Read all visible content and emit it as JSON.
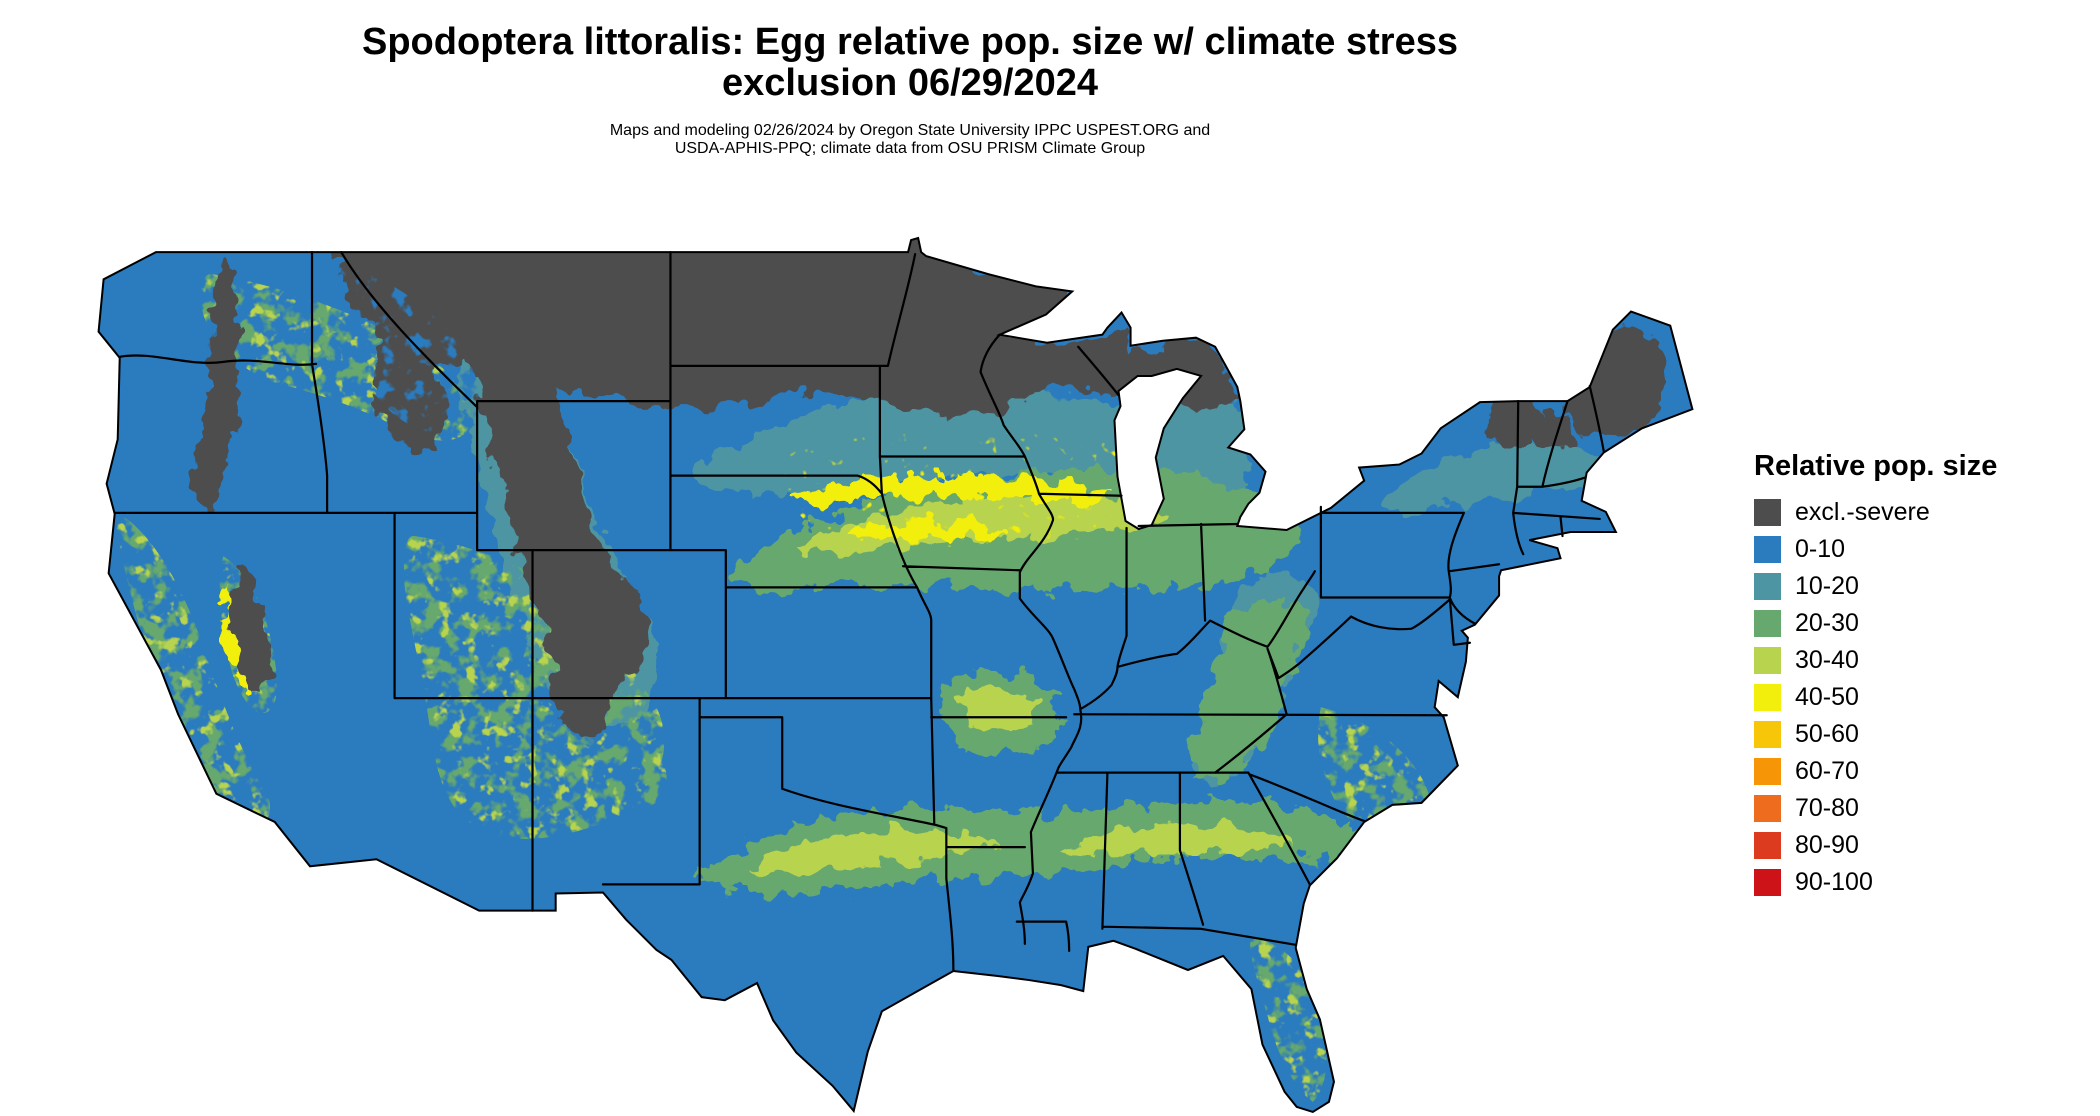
{
  "title": {
    "line1": "Spodoptera littoralis: Egg relative pop. size w/ climate stress",
    "line2": "exclusion 06/29/2024"
  },
  "subtitle": {
    "line1": "Maps and modeling 02/26/2024 by Oregon State University IPPC USPEST.ORG and",
    "line2": "USDA-APHIS-PPQ; climate data from OSU PRISM Climate Group"
  },
  "legend": {
    "title": "Relative pop. size",
    "items": [
      {
        "label": "excl.-severe",
        "color": "#4d4d4d"
      },
      {
        "label": "0-10",
        "color": "#2b7bbf"
      },
      {
        "label": "10-20",
        "color": "#4e95a3"
      },
      {
        "label": "20-30",
        "color": "#66a86e"
      },
      {
        "label": "30-40",
        "color": "#b8d34e"
      },
      {
        "label": "40-50",
        "color": "#f2ef0d"
      },
      {
        "label": "50-60",
        "color": "#f8c608"
      },
      {
        "label": "60-70",
        "color": "#f69506"
      },
      {
        "label": "70-80",
        "color": "#ed6c1e"
      },
      {
        "label": "80-90",
        "color": "#dc3b1f"
      },
      {
        "label": "90-100",
        "color": "#cd1317"
      }
    ]
  },
  "chart_data": {
    "type": "heatmap",
    "subtype": "choropleth-raster-map",
    "region": "Continental United States",
    "title": "Spodoptera littoralis: Egg relative pop. size w/ climate stress exclusion 06/29/2024",
    "legend_title": "Relative pop. size",
    "classes": [
      "excl.-severe",
      "0-10",
      "10-20",
      "20-30",
      "30-40",
      "40-50",
      "50-60",
      "60-70",
      "70-80",
      "80-90",
      "90-100"
    ],
    "class_colors": [
      "#4d4d4d",
      "#2b7bbf",
      "#4e95a3",
      "#66a86e",
      "#b8d34e",
      "#f2ef0d",
      "#f8c608",
      "#f69506",
      "#ed6c1e",
      "#dc3b1f",
      "#cd1317"
    ],
    "border_color": "#000000"
  }
}
